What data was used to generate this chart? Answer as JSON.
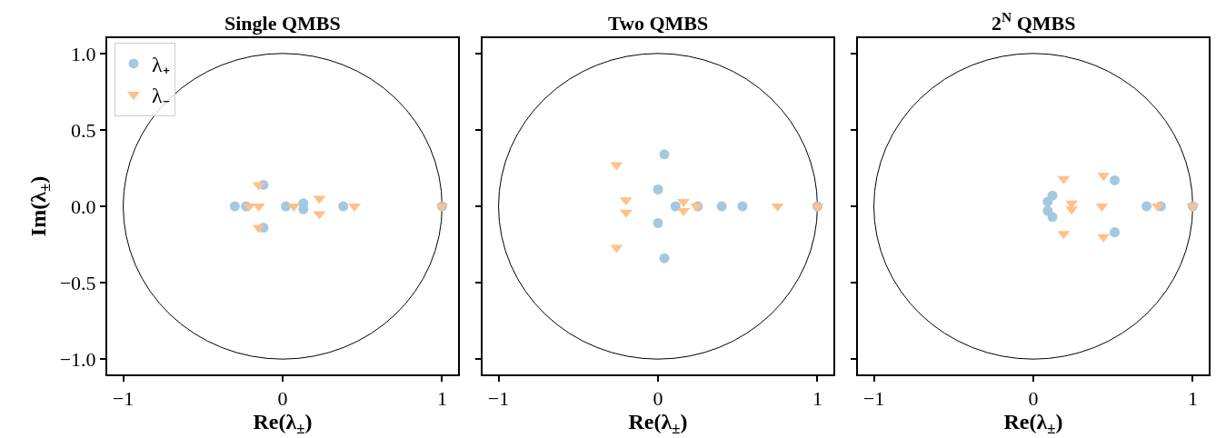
{
  "chart_data": [
    {
      "type": "scatter",
      "title": "Single QMBS",
      "xlabel": "Re(λ$_{±}$)",
      "ylabel": "Im(λ$_{±}$)",
      "xlim": [
        -1.1,
        1.1
      ],
      "ylim": [
        -1.1,
        1.1
      ],
      "xticks": [
        {
          "value": -1,
          "label": "−1"
        },
        {
          "value": 0,
          "label": "0"
        },
        {
          "value": 1,
          "label": "1"
        }
      ],
      "yticks": [
        {
          "value": -1,
          "label": "−1.0"
        },
        {
          "value": -0.5,
          "label": "−0.5"
        },
        {
          "value": 0,
          "label": "0.0"
        },
        {
          "value": 0.5,
          "label": "0.5"
        },
        {
          "value": 1,
          "label": "1.0"
        }
      ],
      "legend": "top left",
      "series": [
        {
          "name": "λ₊",
          "color": "#a5c8e1",
          "marker": "circle",
          "x": [
            -0.3,
            -0.23,
            -0.12,
            -0.12,
            0.02,
            0.13,
            0.13,
            0.38,
            1.0
          ],
          "values": [
            0,
            0,
            0.14,
            -0.14,
            0,
            0.02,
            -0.02,
            0,
            0
          ]
        },
        {
          "name": "λ₋",
          "color": "#ffc08a",
          "marker": "triangle",
          "x": [
            -0.15,
            -0.15,
            -0.21,
            -0.15,
            0.07,
            0.23,
            0.23,
            0.45,
            1.0
          ],
          "values": [
            0.14,
            -0.14,
            0,
            0,
            0,
            0.05,
            -0.05,
            0,
            0
          ]
        }
      ]
    },
    {
      "type": "scatter",
      "title": "Two QMBS",
      "xlabel": "Re(λ$_{±}$)",
      "xlim": [
        -1.1,
        1.1
      ],
      "ylim": [
        -1.1,
        1.1
      ],
      "xticks": [
        {
          "value": -1,
          "label": "−1"
        },
        {
          "value": 0,
          "label": "0"
        },
        {
          "value": 1,
          "label": "1"
        }
      ],
      "yticks": [
        {
          "value": -1,
          "label": null
        },
        {
          "value": -0.5,
          "label": null
        },
        {
          "value": 0,
          "label": null
        },
        {
          "value": 0.5,
          "label": null
        },
        {
          "value": 1,
          "label": null
        }
      ],
      "tick_labels": "x",
      "series": [
        {
          "color": "#a5c8e1",
          "marker": "circle",
          "x": [
            0.04,
            0,
            0,
            0.04,
            0.11,
            0.25,
            0.4,
            0.53,
            1.0
          ],
          "values": [
            0.34,
            0.11,
            -0.11,
            -0.34,
            0,
            0,
            0,
            0,
            0
          ]
        },
        {
          "color": "#ffc08a",
          "marker": "triangle",
          "x": [
            -0.26,
            -0.26,
            -0.2,
            -0.2,
            0.16,
            0.16,
            0.24,
            0.75,
            1.0
          ],
          "values": [
            0.27,
            -0.27,
            0.04,
            -0.04,
            0.03,
            -0.03,
            0,
            0,
            0
          ]
        }
      ]
    },
    {
      "type": "scatter",
      "title": "2$^{N}$ QMBS",
      "xlabel": "Re(λ$_{±}$)",
      "xlim": [
        -1.1,
        1.1
      ],
      "ylim": [
        -1.1,
        1.1
      ],
      "xticks": [
        {
          "value": -1,
          "label": "−1"
        },
        {
          "value": 0,
          "label": "0"
        },
        {
          "value": 1,
          "label": "1"
        }
      ],
      "yticks": [
        {
          "value": -1,
          "label": null
        },
        {
          "value": -0.5,
          "label": null
        },
        {
          "value": 0,
          "label": null
        },
        {
          "value": 0.5,
          "label": null
        },
        {
          "value": 1,
          "label": null
        }
      ],
      "tick_labels": "x",
      "series": [
        {
          "color": "#a5c8e1",
          "marker": "circle",
          "x": [
            0.12,
            0.09,
            0.09,
            0.12,
            0.51,
            0.51,
            0.71,
            0.8,
            1.0
          ],
          "values": [
            0.07,
            0.03,
            -0.03,
            -0.07,
            0.17,
            -0.17,
            0,
            0,
            0
          ]
        },
        {
          "color": "#ffc08a",
          "marker": "triangle",
          "x": [
            0.19,
            0.19,
            0.24,
            0.24,
            0.43,
            0.44,
            0.44,
            0.78,
            1.0
          ],
          "values": [
            0.18,
            -0.18,
            0.02,
            -0.02,
            0,
            0.2,
            -0.2,
            0,
            0
          ]
        }
      ]
    }
  ]
}
